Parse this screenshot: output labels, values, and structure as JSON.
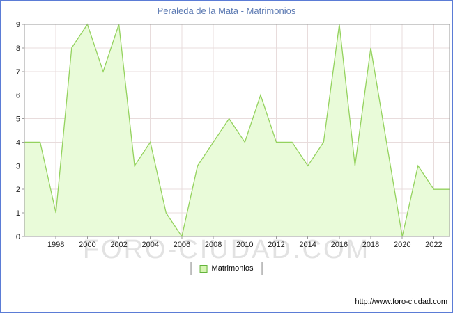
{
  "title": "Peraleda de la Mata - Matrimonios",
  "legend": {
    "label": "Matrimonios"
  },
  "watermark": "FORO-CIUDAD.COM",
  "footer": {
    "url": "http://www.foro-ciudad.com"
  },
  "colors": {
    "border": "#5b7cd6",
    "title": "#5b79b2",
    "grid": "#e8dcdc",
    "axis": "#9a9a9a",
    "tick_text": "#222222",
    "area_fill": "#e9fbd9",
    "area_stroke": "#94d25e",
    "legend_swatch_fill": "#d6f5b2",
    "legend_swatch_border": "#64b43c"
  },
  "chart_data": {
    "type": "area",
    "title": "Peraleda de la Mata - Matrimonios",
    "series_name": "Matrimonios",
    "x": [
      1996,
      1997,
      1998,
      1999,
      2000,
      2001,
      2002,
      2003,
      2004,
      2005,
      2006,
      2007,
      2008,
      2009,
      2010,
      2011,
      2012,
      2013,
      2014,
      2015,
      2016,
      2017,
      2018,
      2019,
      2020,
      2021,
      2022,
      2023
    ],
    "values": [
      4,
      4,
      1,
      8,
      9,
      7,
      9,
      3,
      4,
      1,
      0,
      3,
      4,
      5,
      4,
      6,
      4,
      4,
      3,
      4,
      9,
      3,
      8,
      4,
      0,
      3,
      2,
      2
    ],
    "ylim": [
      0,
      9
    ],
    "y_ticks": [
      0,
      1,
      2,
      3,
      4,
      5,
      6,
      7,
      8,
      9
    ],
    "x_ticks": [
      1998,
      2000,
      2002,
      2004,
      2006,
      2008,
      2010,
      2012,
      2014,
      2016,
      2018,
      2020,
      2022
    ],
    "grid": true,
    "legend_position": "bottom-center"
  }
}
